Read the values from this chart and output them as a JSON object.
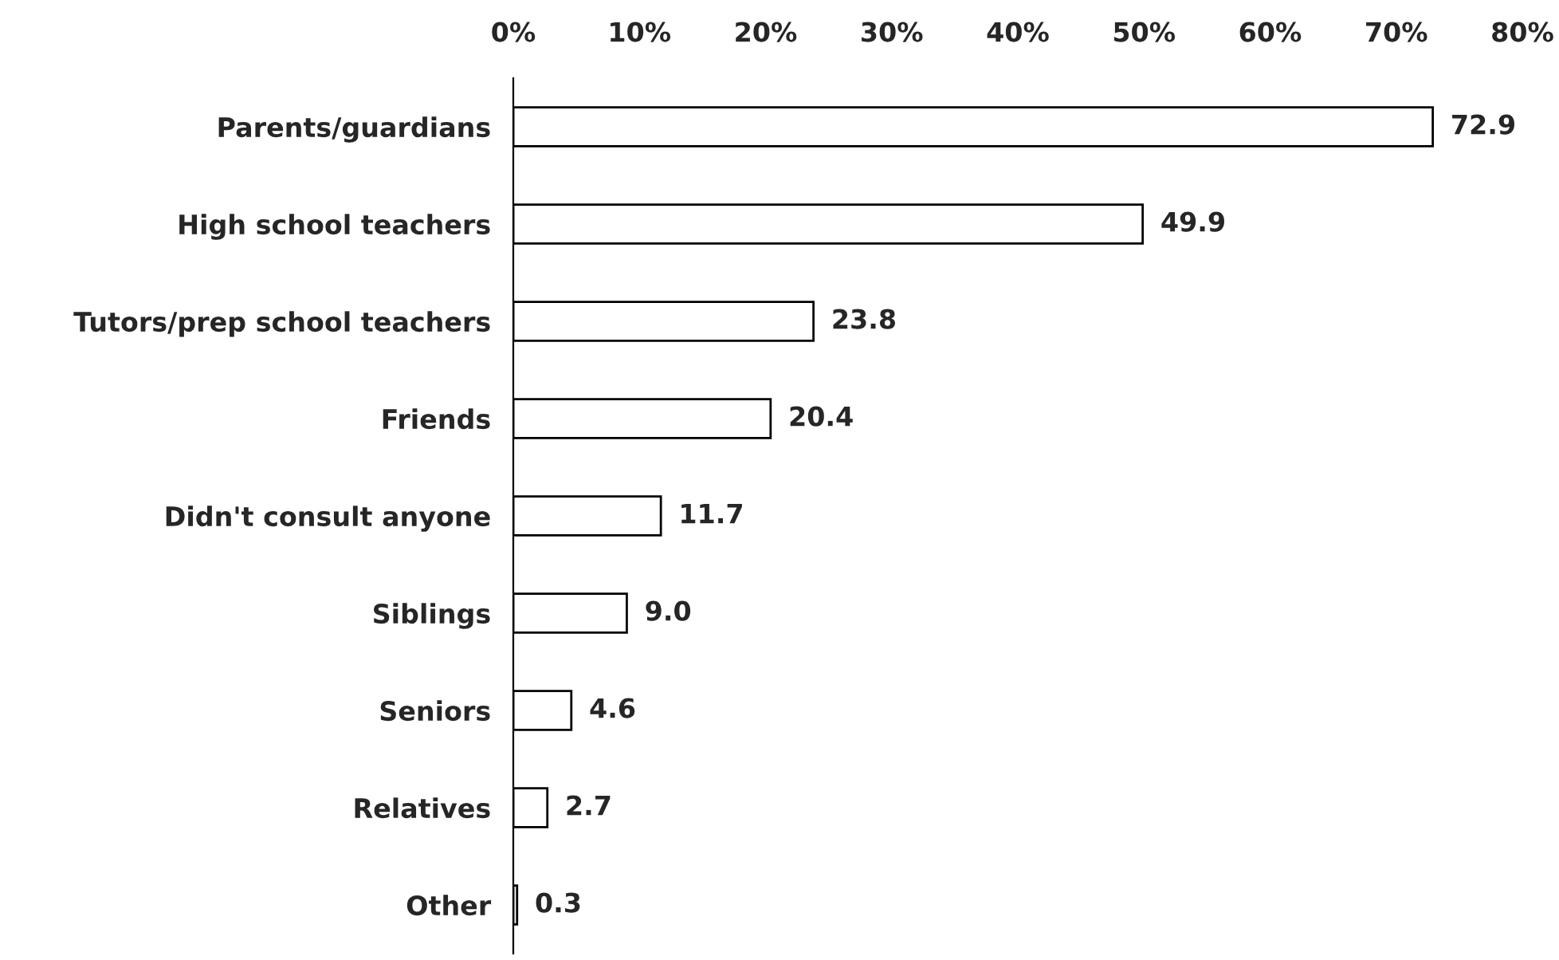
{
  "chart_data": {
    "type": "bar",
    "orientation": "horizontal",
    "categories": [
      "Parents/guardians",
      "High school teachers",
      "Tutors/prep school teachers",
      "Friends",
      "Didn't consult anyone",
      "Siblings",
      "Seniors",
      "Relatives",
      "Other"
    ],
    "values": [
      72.9,
      49.9,
      23.8,
      20.4,
      11.7,
      9.0,
      4.6,
      2.7,
      0.3
    ],
    "value_labels": [
      "72.9",
      "49.9",
      "23.8",
      "20.4",
      "11.7",
      "9.0",
      "4.6",
      "2.7",
      "0.3"
    ],
    "color": "#ffffff",
    "xlim": [
      0,
      80
    ],
    "xticks": [
      {
        "value": 0,
        "label": "0%"
      },
      {
        "value": 10,
        "label": "10%"
      },
      {
        "value": 20,
        "label": "20%"
      },
      {
        "value": 30,
        "label": "30%"
      },
      {
        "value": 40,
        "label": "40%"
      },
      {
        "value": 50,
        "label": "50%"
      },
      {
        "value": 60,
        "label": "60%"
      },
      {
        "value": 70,
        "label": "70%"
      },
      {
        "value": 80,
        "label": "80%"
      }
    ],
    "grid": false,
    "legend": false
  }
}
